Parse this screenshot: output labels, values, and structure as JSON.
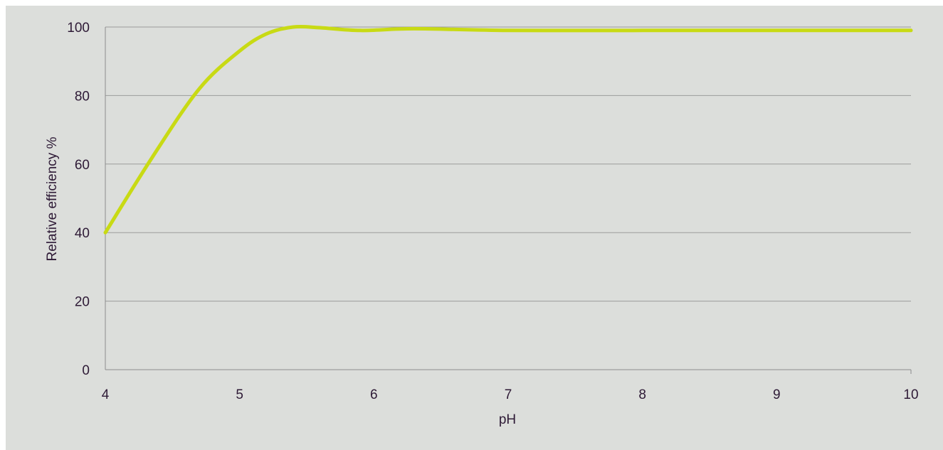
{
  "chart_data": {
    "type": "line",
    "title": "",
    "xlabel": "pH",
    "ylabel": "Relative efficiency %",
    "xlim": [
      4,
      10
    ],
    "ylim": [
      0,
      100
    ],
    "x_ticks": [
      "4",
      "5",
      "6",
      "7",
      "8",
      "9",
      "10"
    ],
    "y_ticks": [
      "0",
      "20",
      "40",
      "60",
      "80",
      "100"
    ],
    "grid": true,
    "legend": "none",
    "series": [
      {
        "x": [
          4,
          4.35,
          4.7,
          5,
          5.2,
          5.4,
          5.6,
          5.9,
          6.3,
          7,
          8,
          9,
          10
        ],
        "y": [
          40,
          62,
          82,
          93,
          98,
          100,
          99.8,
          99,
          99.5,
          99,
          99,
          99,
          99
        ]
      }
    ],
    "colors": {
      "background": "#dcdedb",
      "line": "#c8da14",
      "grid": "#9b9b9b",
      "axis": "#8c8c8c",
      "text": "#2e1a36"
    }
  }
}
